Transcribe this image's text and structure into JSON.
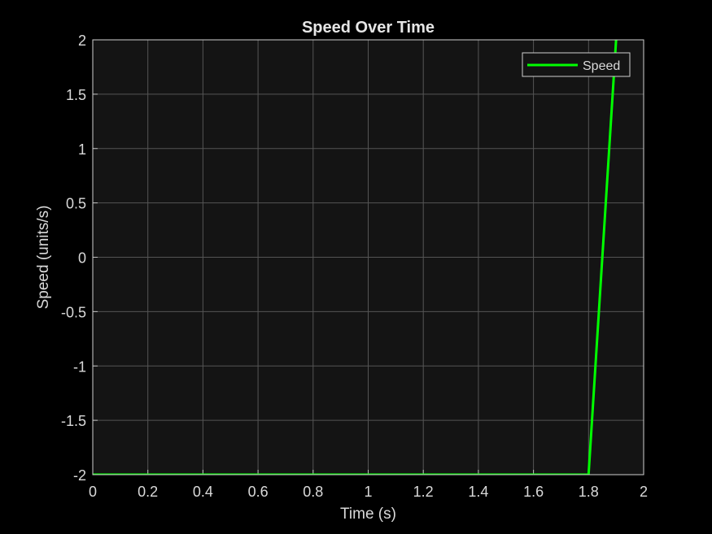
{
  "chart_data": {
    "type": "line",
    "title": "Speed Over Time",
    "xlabel": "Time (s)",
    "ylabel": "Speed (units/s)",
    "xlim": [
      0,
      2
    ],
    "ylim": [
      -2,
      2
    ],
    "xticks": [
      "0",
      "0.2",
      "0.4",
      "0.6",
      "0.8",
      "1",
      "1.2",
      "1.4",
      "1.6",
      "1.8",
      "2"
    ],
    "yticks": [
      "2",
      "1.5",
      "1",
      "0.5",
      "0",
      "-0.5",
      "-1",
      "-1.5",
      "-2"
    ],
    "grid": true,
    "legend_position": "top-right",
    "series": [
      {
        "name": "Speed",
        "color": "#00ff00",
        "x": [
          0,
          1.8,
          1.9
        ],
        "y": [
          -2,
          -2,
          2
        ]
      }
    ]
  },
  "colors": {
    "background": "#000000",
    "plot_area": "#141414",
    "grid": "#555555",
    "text": "#d9d9d9"
  }
}
